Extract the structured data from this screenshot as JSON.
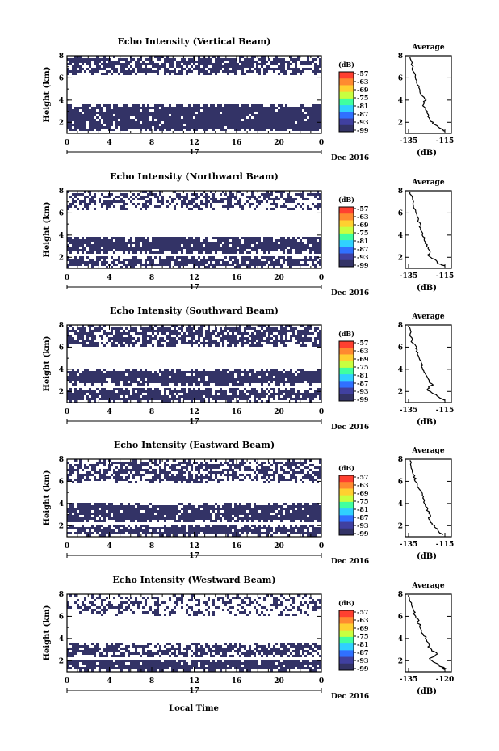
{
  "figure": {
    "xlabel": "Local Time",
    "date_label": "Dec 2016",
    "day_label": "17",
    "avg_title": "Average",
    "avg_xlabel": "(dB)",
    "cbar_unit": "(dB)",
    "cbar_ticks": [
      "-57",
      "-63",
      "-69",
      "-75",
      "-81",
      "-87",
      "-93",
      "-99"
    ],
    "cbar_colors": [
      "#ff4030",
      "#ff8a30",
      "#ffd030",
      "#c8ff40",
      "#40ffa0",
      "#30d0ff",
      "#3070ff",
      "#4040a0",
      "#333366"
    ],
    "fill_color": "#333366"
  },
  "chart_data": [
    {
      "type": "heatmap",
      "title": "Echo Intensity (Vertical Beam)",
      "ylabel": "Height (km)",
      "xlim": [
        0,
        24
      ],
      "ylim": [
        1,
        8
      ],
      "xticks": [
        "0",
        "4",
        "8",
        "12",
        "16",
        "20",
        "0"
      ],
      "yticks": [
        "2",
        "4",
        "6",
        "8"
      ],
      "cbar_range": [
        -99,
        -57
      ],
      "echo_layers": [
        {
          "z0": 1.2,
          "z1": 3.6,
          "density": 0.93
        },
        {
          "z0": 6.3,
          "z1": 7.9,
          "density": 0.72
        }
      ],
      "avg_xlim": [
        -135,
        -115
      ],
      "avg_xticks": [
        "-135",
        "-115"
      ],
      "avg_yticks": [
        "2",
        "4",
        "6",
        "8"
      ],
      "avg_profile": {
        "height": [
          7.9,
          7.2,
          6.5,
          6.0,
          5.5,
          5.0,
          4.5,
          4.0,
          3.5,
          3.0,
          2.6,
          2.2,
          1.8,
          1.4,
          1.2
        ],
        "db": [
          -134,
          -133,
          -132,
          -131,
          -130,
          -129,
          -128,
          -126,
          -127,
          -125,
          -124,
          -123,
          -121,
          -117,
          -115
        ]
      }
    },
    {
      "type": "heatmap",
      "title": "Echo Intensity (Northward Beam)",
      "ylabel": "Height (km)",
      "xlim": [
        0,
        24
      ],
      "ylim": [
        1,
        8
      ],
      "xticks": [
        "0",
        "4",
        "8",
        "12",
        "16",
        "20",
        "0"
      ],
      "yticks": [
        "2",
        "4",
        "6",
        "8"
      ],
      "cbar_range": [
        -99,
        -57
      ],
      "echo_layers": [
        {
          "z0": 1.1,
          "z1": 2.1,
          "density": 0.85
        },
        {
          "z0": 2.3,
          "z1": 3.9,
          "density": 0.9
        },
        {
          "z0": 6.2,
          "z1": 7.9,
          "density": 0.5
        }
      ],
      "avg_xlim": [
        -135,
        -115
      ],
      "avg_xticks": [
        "-135",
        "-115"
      ],
      "avg_yticks": [
        "2",
        "4",
        "6",
        "8"
      ],
      "avg_profile": {
        "height": [
          7.9,
          7.2,
          6.5,
          6.0,
          5.5,
          5.0,
          4.5,
          4.0,
          3.5,
          3.0,
          2.6,
          2.2,
          1.8,
          1.4,
          1.2
        ],
        "db": [
          -134,
          -133,
          -132,
          -131,
          -130,
          -129,
          -128,
          -127,
          -126,
          -125,
          -123,
          -124,
          -121,
          -118,
          -115
        ]
      }
    },
    {
      "type": "heatmap",
      "title": "Echo Intensity (Southward Beam)",
      "ylabel": "Height (km)",
      "xlim": [
        0,
        24
      ],
      "ylim": [
        1,
        8
      ],
      "xticks": [
        "0",
        "4",
        "8",
        "12",
        "16",
        "20",
        "0"
      ],
      "yticks": [
        "2",
        "4",
        "6",
        "8"
      ],
      "cbar_range": [
        -99,
        -57
      ],
      "echo_layers": [
        {
          "z0": 1.1,
          "z1": 2.3,
          "density": 0.85
        },
        {
          "z0": 2.6,
          "z1": 4.0,
          "density": 0.9
        },
        {
          "z0": 6.0,
          "z1": 7.9,
          "density": 0.72
        }
      ],
      "avg_xlim": [
        -135,
        -115
      ],
      "avg_xticks": [
        "-135",
        "-115"
      ],
      "avg_yticks": [
        "2",
        "4",
        "6",
        "8"
      ],
      "avg_profile": {
        "height": [
          7.9,
          7.2,
          6.5,
          6.0,
          5.5,
          5.0,
          4.5,
          4.0,
          3.5,
          3.0,
          2.6,
          2.2,
          1.8,
          1.4,
          1.2
        ],
        "db": [
          -135,
          -134,
          -133,
          -131,
          -130,
          -129,
          -128,
          -127,
          -125,
          -124,
          -122,
          -125,
          -121,
          -118,
          -115
        ]
      }
    },
    {
      "type": "heatmap",
      "title": "Echo Intensity (Eastward Beam)",
      "ylabel": "Height (km)",
      "xlim": [
        0,
        24
      ],
      "ylim": [
        1,
        8
      ],
      "xticks": [
        "0",
        "4",
        "8",
        "12",
        "16",
        "20",
        "0"
      ],
      "yticks": [
        "2",
        "4",
        "6",
        "8"
      ],
      "cbar_range": [
        -99,
        -57
      ],
      "echo_layers": [
        {
          "z0": 1.1,
          "z1": 2.1,
          "density": 0.88
        },
        {
          "z0": 2.3,
          "z1": 4.0,
          "density": 0.9
        },
        {
          "z0": 5.9,
          "z1": 7.9,
          "density": 0.62
        }
      ],
      "avg_xlim": [
        -135,
        -115
      ],
      "avg_xticks": [
        "-135",
        "-115"
      ],
      "avg_yticks": [
        "2",
        "4",
        "6",
        "8"
      ],
      "avg_profile": {
        "height": [
          7.9,
          7.2,
          6.5,
          6.0,
          5.5,
          5.0,
          4.5,
          4.0,
          3.5,
          3.0,
          2.6,
          2.2,
          1.8,
          1.4,
          1.2
        ],
        "db": [
          -134,
          -133,
          -132,
          -131,
          -130,
          -128,
          -127,
          -126,
          -125,
          -123,
          -124,
          -122,
          -120,
          -118,
          -116
        ]
      }
    },
    {
      "type": "heatmap",
      "title": "Echo Intensity (Westward Beam)",
      "ylabel": "Height (km)",
      "xlim": [
        0,
        24
      ],
      "ylim": [
        1,
        8
      ],
      "xticks": [
        "0",
        "4",
        "8",
        "12",
        "16",
        "20",
        "0"
      ],
      "yticks": [
        "2",
        "4",
        "6",
        "8"
      ],
      "cbar_range": [
        -99,
        -57
      ],
      "echo_layers": [
        {
          "z0": 1.1,
          "z1": 2.2,
          "density": 0.88
        },
        {
          "z0": 2.3,
          "z1": 3.6,
          "density": 0.7
        },
        {
          "z0": 6.0,
          "z1": 7.9,
          "density": 0.4
        }
      ],
      "avg_xlim": [
        -135,
        -120
      ],
      "avg_xticks": [
        "-135",
        "-120"
      ],
      "avg_yticks": [
        "2",
        "4",
        "6",
        "8"
      ],
      "avg_profile": {
        "height": [
          7.9,
          7.2,
          6.5,
          6.0,
          5.5,
          5.0,
          4.5,
          4.0,
          3.5,
          3.0,
          2.6,
          2.2,
          1.8,
          1.4,
          1.2
        ],
        "db": [
          -135,
          -134,
          -133,
          -132,
          -131,
          -130,
          -129,
          -128,
          -127,
          -126,
          -123,
          -126,
          -124,
          -121,
          -120
        ]
      }
    }
  ]
}
